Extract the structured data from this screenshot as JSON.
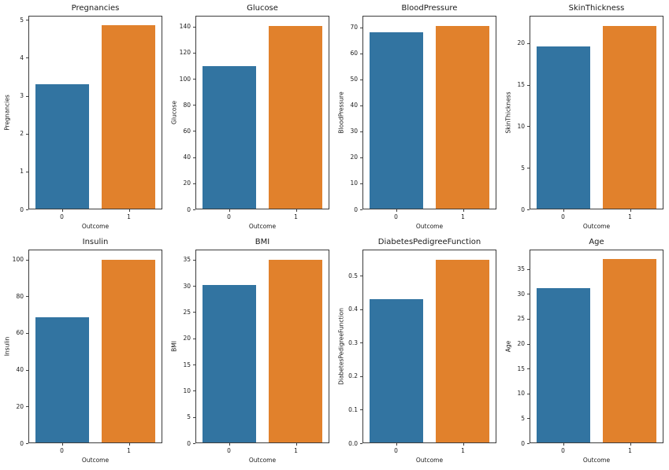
{
  "figure": {
    "background": "#ffffff",
    "rows": 2,
    "cols": 4,
    "bar_colors": [
      "#3274a1",
      "#e1812c"
    ]
  },
  "chart_data": [
    {
      "type": "bar",
      "title": "Pregnancies",
      "ylabel": "Pregnancies",
      "xlabel": "Outcome",
      "categories": [
        "0",
        "1"
      ],
      "values": [
        3.3,
        4.87
      ],
      "colors": [
        "#3274a1",
        "#e1812c"
      ],
      "ylim": [
        0,
        5.11
      ],
      "ytick_values": [
        0,
        1,
        2,
        3,
        4,
        5
      ],
      "ytick_labels": [
        "0",
        "1",
        "2",
        "3",
        "4",
        "5"
      ],
      "grid": false,
      "legend": "none"
    },
    {
      "type": "bar",
      "title": "Glucose",
      "ylabel": "Glucose",
      "xlabel": "Outcome",
      "categories": [
        "0",
        "1"
      ],
      "values": [
        110.0,
        141.3
      ],
      "colors": [
        "#3274a1",
        "#e1812c"
      ],
      "ylim": [
        0,
        148.3
      ],
      "ytick_values": [
        0,
        20,
        40,
        60,
        80,
        100,
        120,
        140
      ],
      "ytick_labels": [
        "0",
        "20",
        "40",
        "60",
        "80",
        "100",
        "120",
        "140"
      ],
      "grid": false,
      "legend": "none"
    },
    {
      "type": "bar",
      "title": "BloodPressure",
      "ylabel": "BloodPressure",
      "xlabel": "Outcome",
      "categories": [
        "0",
        "1"
      ],
      "values": [
        68.2,
        70.8
      ],
      "colors": [
        "#3274a1",
        "#e1812c"
      ],
      "ylim": [
        0,
        74.4
      ],
      "ytick_values": [
        0,
        10,
        20,
        30,
        40,
        50,
        60,
        70
      ],
      "ytick_labels": [
        "0",
        "10",
        "20",
        "30",
        "40",
        "50",
        "60",
        "70"
      ],
      "grid": false,
      "legend": "none"
    },
    {
      "type": "bar",
      "title": "SkinThickness",
      "ylabel": "SkinThickness",
      "xlabel": "Outcome",
      "categories": [
        "0",
        "1"
      ],
      "values": [
        19.7,
        22.2
      ],
      "colors": [
        "#3274a1",
        "#e1812c"
      ],
      "ylim": [
        0,
        23.3
      ],
      "ytick_values": [
        0,
        5,
        10,
        15,
        20
      ],
      "ytick_labels": [
        "0",
        "5",
        "10",
        "15",
        "20"
      ],
      "grid": false,
      "legend": "none"
    },
    {
      "type": "bar",
      "title": "Insulin",
      "ylabel": "Insulin",
      "xlabel": "Outcome",
      "categories": [
        "0",
        "1"
      ],
      "values": [
        68.8,
        100.3
      ],
      "colors": [
        "#3274a1",
        "#e1812c"
      ],
      "ylim": [
        0,
        105.4
      ],
      "ytick_values": [
        0,
        20,
        40,
        60,
        80,
        100
      ],
      "ytick_labels": [
        "0",
        "20",
        "40",
        "60",
        "80",
        "100"
      ],
      "grid": false,
      "legend": "none"
    },
    {
      "type": "bar",
      "title": "BMI",
      "ylabel": "BMI",
      "xlabel": "Outcome",
      "categories": [
        "0",
        "1"
      ],
      "values": [
        30.3,
        35.1
      ],
      "colors": [
        "#3274a1",
        "#e1812c"
      ],
      "ylim": [
        0,
        36.9
      ],
      "ytick_values": [
        0,
        5,
        10,
        15,
        20,
        25,
        30,
        35
      ],
      "ytick_labels": [
        "0",
        "5",
        "10",
        "15",
        "20",
        "25",
        "30",
        "35"
      ],
      "grid": false,
      "legend": "none"
    },
    {
      "type": "bar",
      "title": "DiabetesPedigreeFunction",
      "ylabel": "DiabetesPedigreeFunction",
      "xlabel": "Outcome",
      "categories": [
        "0",
        "1"
      ],
      "values": [
        0.43,
        0.55
      ],
      "colors": [
        "#3274a1",
        "#e1812c"
      ],
      "ylim": [
        0,
        0.578
      ],
      "ytick_values": [
        0,
        0.1,
        0.2,
        0.3,
        0.4,
        0.5
      ],
      "ytick_labels": [
        "0.0",
        "0.1",
        "0.2",
        "0.3",
        "0.4",
        "0.5"
      ],
      "grid": false,
      "legend": "none"
    },
    {
      "type": "bar",
      "title": "Age",
      "ylabel": "Age",
      "xlabel": "Outcome",
      "categories": [
        "0",
        "1"
      ],
      "values": [
        31.2,
        37.1
      ],
      "colors": [
        "#3274a1",
        "#e1812c"
      ],
      "ylim": [
        0,
        38.9
      ],
      "ytick_values": [
        0,
        5,
        10,
        15,
        20,
        25,
        30,
        35
      ],
      "ytick_labels": [
        "0",
        "5",
        "10",
        "15",
        "20",
        "25",
        "30",
        "35"
      ],
      "grid": false,
      "legend": "none"
    }
  ]
}
